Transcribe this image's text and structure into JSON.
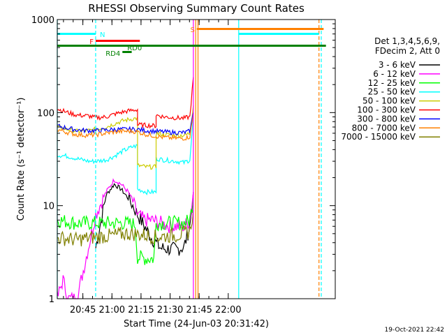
{
  "chart_data": {
    "type": "line",
    "title": "RHESSI Observing Summary Count Rates",
    "xlabel": "Start Time (24-Jun-03 20:31:42)",
    "ylabel": "Count Rate (s⁻¹ detector⁻¹)",
    "x_ticks": [
      "20:45",
      "21:00",
      "21:15",
      "21:30",
      "21:45",
      "22:00"
    ],
    "y_ticks": [
      "1",
      "10",
      "100",
      "1000"
    ],
    "y_scale": "log",
    "ylim": [
      1,
      1000
    ],
    "xlim_minutes": [
      20.53,
      22.92
    ],
    "timestamp": "19-Oct-2021 22:42",
    "legend_header": [
      "Det 1,3,4,5,6,9,",
      "FDecim 2, Att 0"
    ],
    "legend_position": "right",
    "flags": [
      {
        "label": "N",
        "color": "#00ffff",
        "segments": [
          [
            20.53,
            20.86
          ],
          [
            22.09,
            22.78
          ]
        ]
      },
      {
        "label": "F",
        "color": "#ff0000",
        "segments": [
          [
            20.86,
            21.22
          ],
          [
            21.22,
            21.24
          ]
        ]
      },
      {
        "label": "RD0",
        "color": "#008000",
        "segments": [
          [
            21.05,
            21.22
          ]
        ]
      },
      {
        "label": "RD4",
        "color": "#008000",
        "segments": [
          [
            21.09,
            21.17
          ]
        ]
      },
      {
        "label": "S",
        "color": "#ff8000",
        "segments": [
          [
            21.73,
            22.82
          ]
        ]
      }
    ],
    "full_bar": {
      "color": "#008000",
      "segments": [
        [
          20.53,
          22.84
        ]
      ]
    },
    "vlines": [
      {
        "x": 20.53,
        "color": "#00ffff",
        "style": "solid"
      },
      {
        "x": 20.86,
        "color": "#00ffff",
        "style": "dashed"
      },
      {
        "x": 21.7,
        "color": "#ff00ff",
        "style": "solid"
      },
      {
        "x": 21.72,
        "color": "#ff8000",
        "style": "solid"
      },
      {
        "x": 21.74,
        "color": "#ff8000",
        "style": "solid"
      },
      {
        "x": 22.09,
        "color": "#00ffff",
        "style": "solid"
      },
      {
        "x": 22.78,
        "color": "#ff8000",
        "style": "dashed"
      },
      {
        "x": 22.8,
        "color": "#00ffff",
        "style": "dashed"
      }
    ],
    "series": [
      {
        "name": "3 - 6 keV",
        "color": "#000000",
        "points": [
          [
            20.86,
            3.5
          ],
          [
            20.95,
            13
          ],
          [
            21.02,
            17
          ],
          [
            21.08,
            15
          ],
          [
            21.14,
            12
          ],
          [
            21.18,
            10
          ],
          [
            21.22,
            8
          ],
          [
            21.28,
            6
          ],
          [
            21.34,
            4.5
          ],
          [
            21.42,
            3.5
          ],
          [
            21.5,
            3.4
          ],
          [
            21.56,
            3.4
          ],
          [
            21.62,
            3.6
          ],
          [
            21.67,
            6
          ],
          [
            21.7,
            14
          ]
        ]
      },
      {
        "name": "6 - 12 keV",
        "color": "#ff00ff",
        "points": [
          [
            20.53,
            1.0
          ],
          [
            20.58,
            1.6
          ],
          [
            20.62,
            1.0
          ],
          [
            20.7,
            1.0
          ],
          [
            20.86,
            8
          ],
          [
            20.95,
            14
          ],
          [
            21.02,
            19
          ],
          [
            21.08,
            17
          ],
          [
            21.14,
            14
          ],
          [
            21.18,
            11
          ],
          [
            21.22,
            8
          ],
          [
            21.28,
            7
          ],
          [
            21.34,
            7
          ],
          [
            21.42,
            6.5
          ],
          [
            21.5,
            6
          ],
          [
            21.56,
            6
          ],
          [
            21.62,
            6
          ],
          [
            21.67,
            7
          ],
          [
            21.7,
            14
          ]
        ]
      },
      {
        "name": "12 - 25 keV",
        "color": "#00ff00",
        "points": [
          [
            20.53,
            7
          ],
          [
            20.7,
            6.5
          ],
          [
            20.86,
            6.5
          ],
          [
            21.0,
            6.5
          ],
          [
            21.1,
            6.5
          ],
          [
            21.2,
            6.3
          ],
          [
            21.22,
            2.8
          ],
          [
            21.3,
            2.7
          ],
          [
            21.36,
            2.7
          ],
          [
            21.38,
            6.5
          ],
          [
            21.5,
            6.5
          ],
          [
            21.62,
            6.5
          ],
          [
            21.67,
            7
          ],
          [
            21.7,
            12
          ]
        ]
      },
      {
        "name": "25 - 50 keV",
        "color": "#00ffff",
        "points": [
          [
            20.53,
            35
          ],
          [
            20.62,
            34
          ],
          [
            20.7,
            32
          ],
          [
            20.8,
            30
          ],
          [
            20.86,
            30
          ],
          [
            20.95,
            31
          ],
          [
            21.02,
            34
          ],
          [
            21.1,
            39
          ],
          [
            21.18,
            43
          ],
          [
            21.22,
            44
          ],
          [
            21.22,
            15
          ],
          [
            21.3,
            14
          ],
          [
            21.38,
            14
          ],
          [
            21.38,
            32
          ],
          [
            21.45,
            31
          ],
          [
            21.55,
            30
          ],
          [
            21.62,
            29
          ],
          [
            21.67,
            31
          ],
          [
            21.7,
            90
          ]
        ]
      },
      {
        "name": "50 - 100 keV",
        "color": "#cccc00",
        "points": [
          [
            20.53,
            70
          ],
          [
            20.62,
            66
          ],
          [
            20.7,
            63
          ],
          [
            20.8,
            64
          ],
          [
            20.86,
            66
          ],
          [
            20.95,
            70
          ],
          [
            21.02,
            76
          ],
          [
            21.1,
            82
          ],
          [
            21.18,
            86
          ],
          [
            21.22,
            87
          ],
          [
            21.22,
            27
          ],
          [
            21.3,
            26
          ],
          [
            21.38,
            26
          ],
          [
            21.38,
            60
          ],
          [
            21.45,
            58
          ],
          [
            21.55,
            57
          ],
          [
            21.62,
            57
          ],
          [
            21.67,
            60
          ],
          [
            21.7,
            120
          ]
        ]
      },
      {
        "name": "100 - 300 keV",
        "color": "#ff0000",
        "points": [
          [
            20.53,
            110
          ],
          [
            20.62,
            100
          ],
          [
            20.7,
            94
          ],
          [
            20.8,
            92
          ],
          [
            20.86,
            88
          ],
          [
            20.95,
            90
          ],
          [
            21.02,
            96
          ],
          [
            21.1,
            102
          ],
          [
            21.18,
            106
          ],
          [
            21.22,
            108
          ],
          [
            21.22,
            74
          ],
          [
            21.3,
            73
          ],
          [
            21.38,
            72
          ],
          [
            21.38,
            94
          ],
          [
            21.45,
            90
          ],
          [
            21.55,
            88
          ],
          [
            21.62,
            87
          ],
          [
            21.67,
            90
          ],
          [
            21.7,
            240
          ]
        ]
      },
      {
        "name": "300 - 800 keV",
        "color": "#0000ff",
        "points": [
          [
            20.53,
            72
          ],
          [
            20.62,
            68
          ],
          [
            20.7,
            65
          ],
          [
            20.8,
            64
          ],
          [
            20.86,
            64
          ],
          [
            20.95,
            65
          ],
          [
            21.02,
            66
          ],
          [
            21.1,
            66
          ],
          [
            21.18,
            66
          ],
          [
            21.22,
            66
          ],
          [
            21.3,
            64
          ],
          [
            21.38,
            63
          ],
          [
            21.45,
            62
          ],
          [
            21.55,
            61
          ],
          [
            21.62,
            61
          ],
          [
            21.67,
            63
          ],
          [
            21.7,
            100
          ]
        ]
      },
      {
        "name": "800 - 7000 keV",
        "color": "#ff8000",
        "points": [
          [
            20.53,
            66
          ],
          [
            20.62,
            61
          ],
          [
            20.7,
            58
          ],
          [
            20.8,
            57
          ],
          [
            20.86,
            58
          ],
          [
            20.95,
            60
          ],
          [
            21.02,
            62
          ],
          [
            21.1,
            63
          ],
          [
            21.18,
            63
          ],
          [
            21.22,
            62
          ],
          [
            21.3,
            58
          ],
          [
            21.38,
            56
          ],
          [
            21.45,
            54
          ],
          [
            21.55,
            53
          ],
          [
            21.62,
            53
          ],
          [
            21.67,
            55
          ],
          [
            21.7,
            95
          ]
        ]
      },
      {
        "name": "7000 - 15000 keV",
        "color": "#808000",
        "points": [
          [
            20.53,
            4.5
          ],
          [
            20.62,
            4.4
          ],
          [
            20.7,
            4.3
          ],
          [
            20.8,
            4.5
          ],
          [
            20.86,
            4.6
          ],
          [
            20.95,
            4.7
          ],
          [
            21.02,
            4.8
          ],
          [
            21.1,
            5.0
          ],
          [
            21.18,
            5.0
          ],
          [
            21.22,
            4.9
          ],
          [
            21.3,
            4.8
          ],
          [
            21.38,
            4.6
          ],
          [
            21.45,
            4.7
          ],
          [
            21.55,
            4.8
          ],
          [
            21.62,
            5.0
          ],
          [
            21.67,
            5.3
          ],
          [
            21.7,
            9
          ]
        ]
      }
    ]
  }
}
